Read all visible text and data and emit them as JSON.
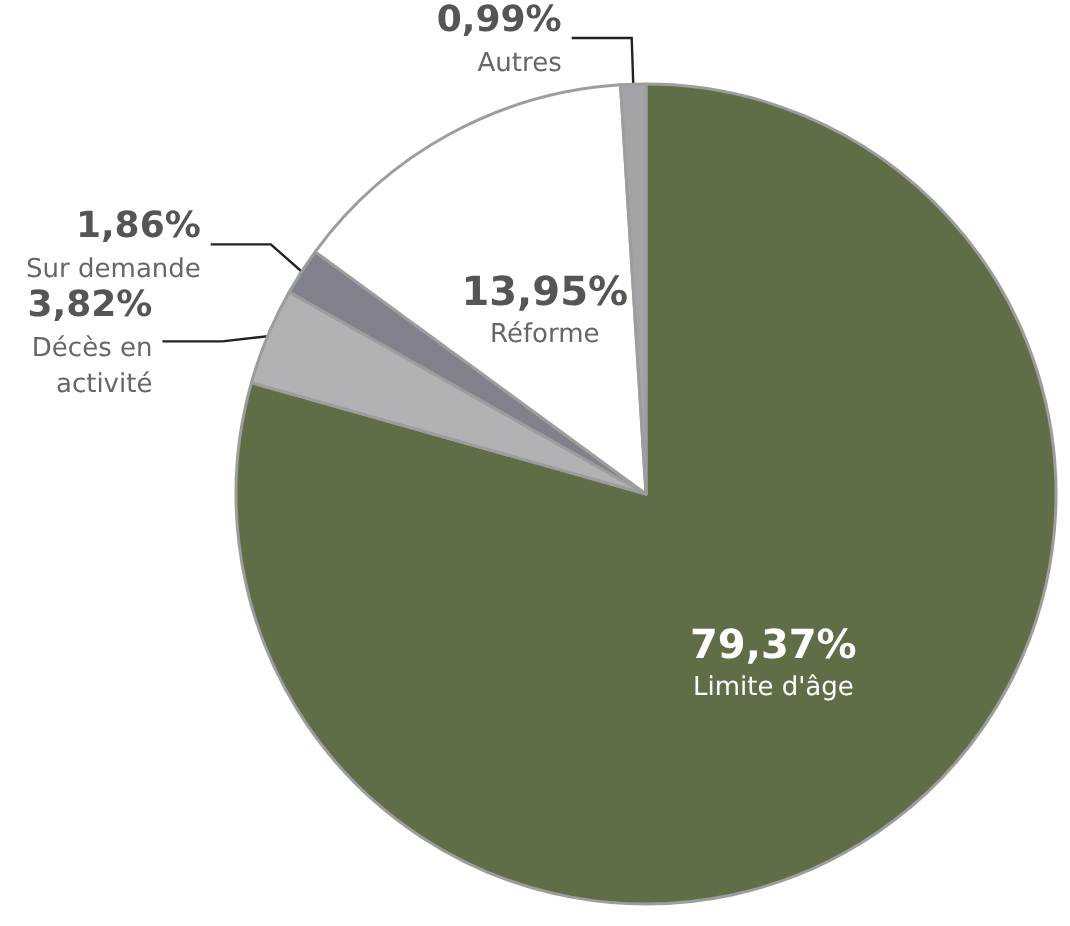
{
  "chart_data": {
    "type": "pie",
    "categories": [
      "Limite d'âge",
      "Décès en\nactivité",
      "Sur demande",
      "Réforme",
      "Autres"
    ],
    "values": [
      79.37,
      3.82,
      1.86,
      13.95,
      0.99
    ],
    "value_labels": [
      "79,37%",
      "3,82%",
      "1,86%",
      "13,95%",
      "0,99%"
    ],
    "colors": [
      "#5f6e47",
      "#b1b2b4",
      "#7f828b",
      "#ffffff",
      "#a2a4a8"
    ],
    "legend": false
  }
}
